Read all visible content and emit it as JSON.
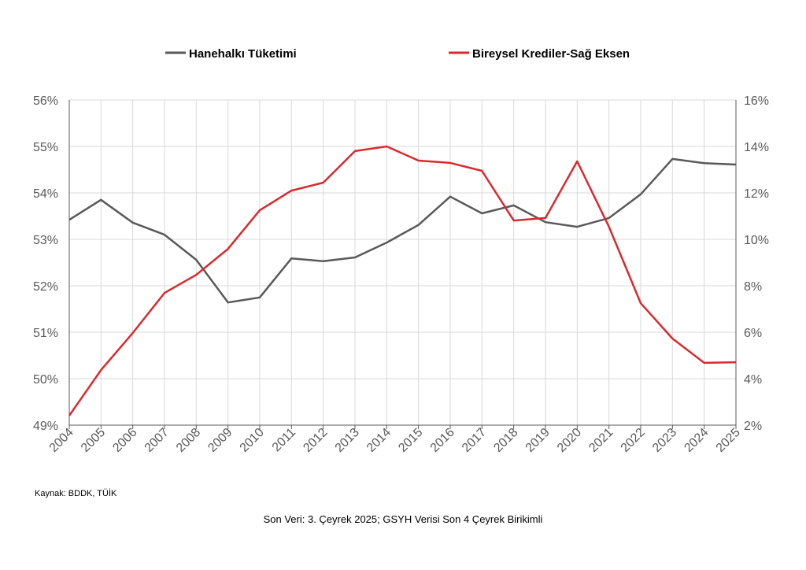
{
  "chart_data": {
    "type": "line",
    "title": "",
    "x": [
      "2004",
      "2005",
      "2006",
      "2007",
      "2008",
      "2009",
      "2010",
      "2011",
      "2012",
      "2013",
      "2014",
      "2015",
      "2016",
      "2017",
      "2018",
      "2019",
      "2020",
      "2021",
      "2022",
      "2023",
      "2024",
      "2025"
    ],
    "series": [
      {
        "name": "Hanehalkı Tüketimi",
        "axis": "left",
        "color": "#595959",
        "values": [
          53.42,
          53.85,
          53.36,
          53.1,
          52.56,
          51.64,
          51.75,
          52.59,
          52.53,
          52.61,
          52.93,
          53.31,
          53.92,
          53.56,
          53.73,
          53.37,
          53.27,
          53.46,
          53.97,
          54.73,
          54.64,
          54.61
        ]
      },
      {
        "name": "Bireysel Krediler-Sağ Eksen",
        "axis": "right",
        "color": "#d62b2f",
        "values": [
          2.41,
          4.37,
          5.97,
          7.69,
          8.47,
          9.59,
          11.25,
          12.1,
          12.44,
          13.8,
          14.0,
          13.39,
          13.29,
          12.95,
          10.81,
          10.92,
          13.36,
          10.54,
          7.25,
          5.73,
          4.68,
          4.71
        ]
      }
    ],
    "ylim_left": [
      49,
      56
    ],
    "ylim_right": [
      2,
      16
    ],
    "yticks_left": [
      "49%",
      "50%",
      "51%",
      "52%",
      "53%",
      "54%",
      "55%",
      "56%"
    ],
    "yticks_right": [
      "2%",
      "4%",
      "6%",
      "8%",
      "10%",
      "12%",
      "14%",
      "16%"
    ],
    "grid": true,
    "legend_placement": "top"
  },
  "source_note": "Kaynak: BDDK, TÜİK",
  "footnote": "Son Veri: 3. Çeyrek 2025; GSYH Verisi Son 4 Çeyrek Birikimli"
}
